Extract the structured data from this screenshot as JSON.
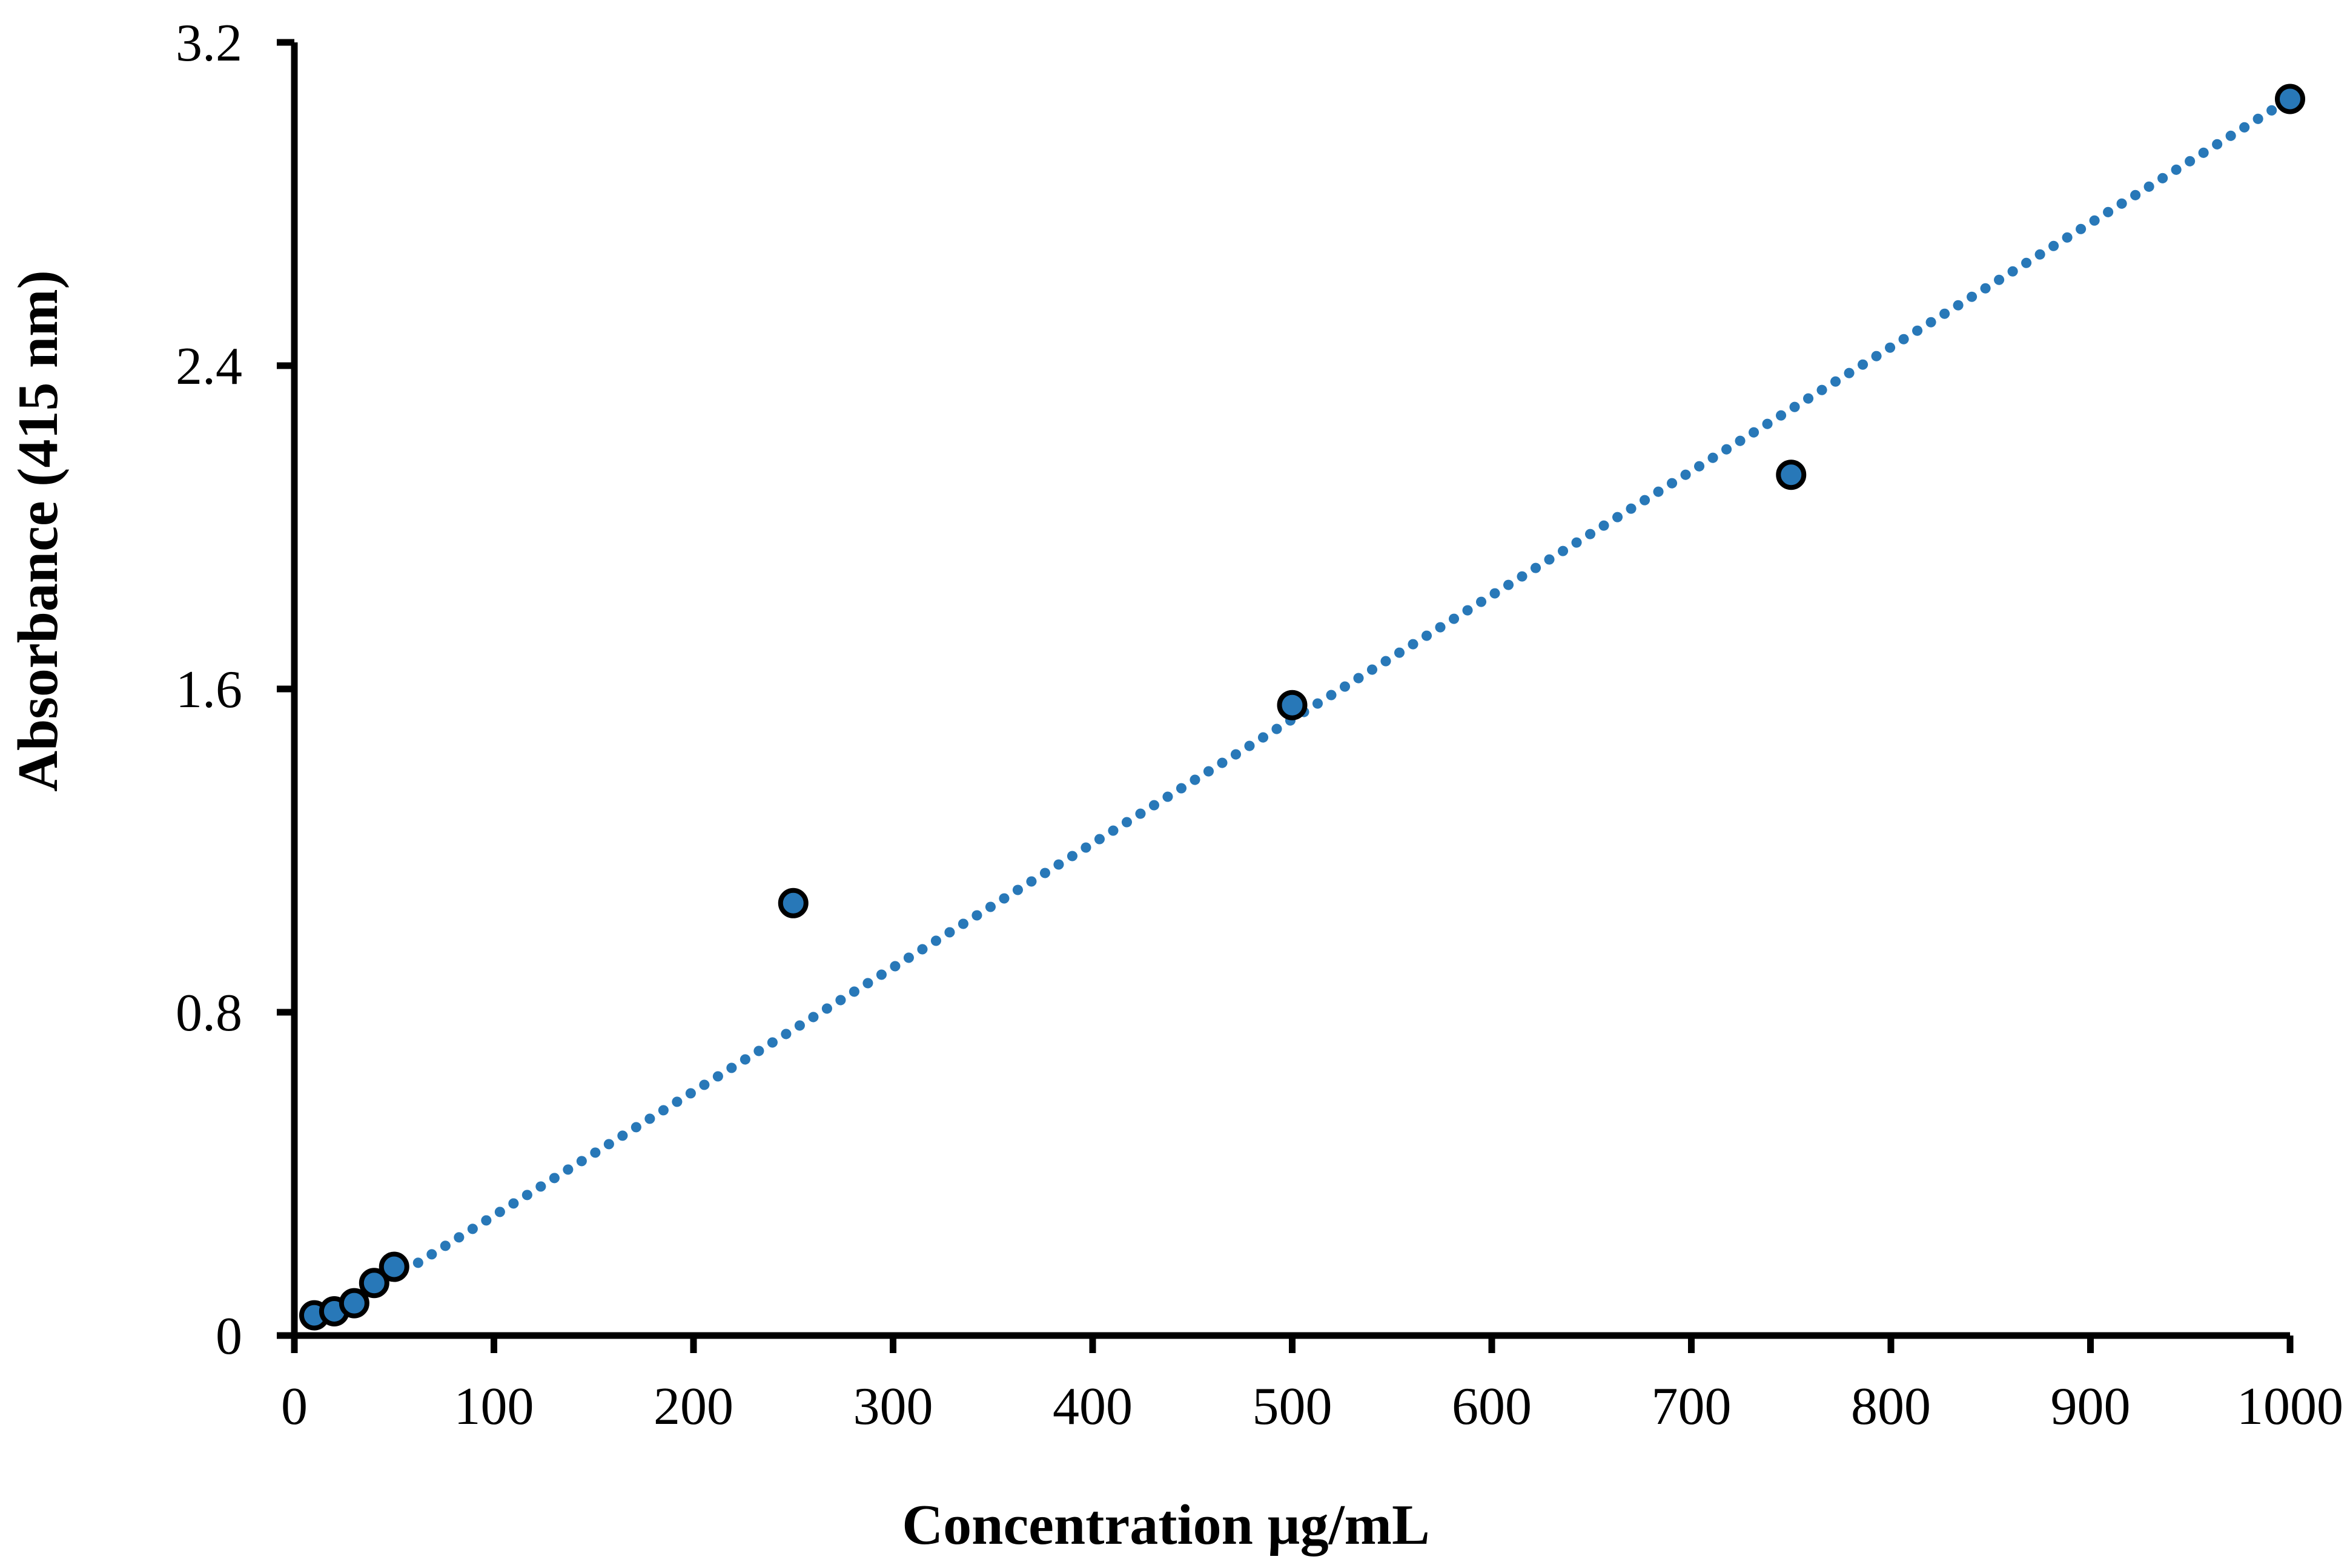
{
  "chart_data": {
    "type": "scatter",
    "xlabel": "Concentration µg/mL",
    "ylabel": "Absorbance (415 nm)",
    "xlim": [
      0,
      1000
    ],
    "ylim": [
      0,
      3.2
    ],
    "x_ticks": {
      "values": [
        0,
        100,
        200,
        300,
        400,
        500,
        600,
        700,
        800,
        900,
        1000
      ],
      "labels": [
        "0",
        "100",
        "200",
        "300",
        "400",
        "500",
        "600",
        "700",
        "800",
        "900",
        "1000"
      ]
    },
    "y_ticks": {
      "values": [
        0,
        0.8,
        1.6,
        2.4,
        3.2
      ],
      "labels": [
        "0",
        "0.8",
        "1.6",
        "2.4",
        "3.2"
      ]
    },
    "grid": false,
    "legend": "none",
    "axis_color": "#000000",
    "series": [
      {
        "name": "absorbance-standards",
        "marker": "circle",
        "marker_fill": "#2878B8",
        "marker_edge": "#000000",
        "points": [
          {
            "x": 10,
            "y": 0.05
          },
          {
            "x": 20,
            "y": 0.06
          },
          {
            "x": 30,
            "y": 0.08
          },
          {
            "x": 40,
            "y": 0.13
          },
          {
            "x": 50,
            "y": 0.17
          },
          {
            "x": 250,
            "y": 1.07
          },
          {
            "x": 500,
            "y": 1.56
          },
          {
            "x": 750,
            "y": 2.13
          },
          {
            "x": 1000,
            "y": 3.06
          }
        ]
      }
    ],
    "trendline": {
      "style": "dotted",
      "color": "#2878B8",
      "start": {
        "x": 62,
        "y": 0.18
      },
      "end": {
        "x": 1000,
        "y": 3.06
      }
    }
  }
}
